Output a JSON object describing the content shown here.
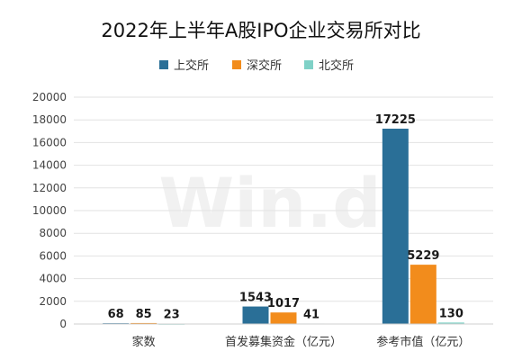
{
  "watermark": "Win.d",
  "colors": {
    "sse": "#2a6f97",
    "szse": "#f28c1c",
    "bse": "#7fd1c7",
    "grid": "#e2e2e2",
    "axis": "#cfcfcf"
  },
  "chart_data": {
    "type": "bar",
    "title": "2022年上半年A股IPO企业交易所对比",
    "xlabel": "",
    "ylabel": "",
    "ylim": [
      0,
      20000
    ],
    "yticks": [
      "0",
      "2000",
      "4000",
      "6000",
      "8000",
      "10000",
      "12000",
      "14000",
      "16000",
      "18000",
      "20000"
    ],
    "grid": true,
    "legend_position": "top-center",
    "categories": [
      "家数",
      "首发募集资金（亿元）",
      "参考市值（亿元）"
    ],
    "series": [
      {
        "name": "上交所",
        "values": [
          68,
          1543,
          17225
        ]
      },
      {
        "name": "深交所",
        "values": [
          85,
          1017,
          5229
        ]
      },
      {
        "name": "北交所",
        "values": [
          23,
          41,
          130
        ]
      }
    ]
  }
}
